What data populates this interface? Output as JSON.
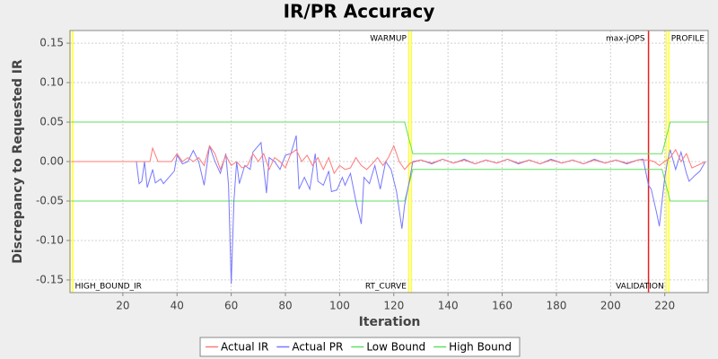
{
  "chart_data": {
    "type": "line",
    "title": "IR/PR Accuracy",
    "xlabel": "Iteration",
    "ylabel": "Discrepancy to Requested IR",
    "xlim": [
      0.5,
      236
    ],
    "ylim": [
      -0.166,
      0.166
    ],
    "xticks": [
      20,
      40,
      60,
      80,
      100,
      120,
      140,
      160,
      180,
      200,
      220
    ],
    "yticks": [
      -0.15,
      {
        "value": -0.1,
        "label": "-0.10"
      },
      -0.05,
      {
        "value": 0,
        "label": "0.00"
      },
      0.05,
      {
        "value": 0.1,
        "label": "0.10"
      },
      0.15
    ],
    "grid": true,
    "legend": "bottom",
    "series": [
      {
        "name": "Actual IR",
        "color": "#ff7878",
        "x": [
          1,
          24,
          30,
          31,
          33,
          38,
          40,
          42,
          44,
          46,
          48,
          50,
          52,
          54,
          56,
          58,
          60,
          62,
          64,
          66,
          68,
          70,
          72,
          74,
          76,
          78,
          80,
          82,
          84,
          86,
          88,
          90,
          92,
          94,
          96,
          98,
          100,
          102,
          104,
          106,
          108,
          110,
          112,
          114,
          116,
          118,
          120,
          122,
          124,
          126,
          128,
          130,
          134,
          138,
          142,
          146,
          150,
          154,
          158,
          162,
          166,
          170,
          174,
          178,
          182,
          186,
          190,
          194,
          198,
          202,
          206,
          210,
          214,
          216,
          218,
          220,
          222,
          224,
          226,
          228,
          230,
          232,
          235
        ],
        "values": [
          0,
          0,
          0,
          0.017,
          0,
          0,
          0.01,
          0,
          0.005,
          0,
          0.005,
          -0.005,
          0.02,
          0.01,
          -0.01,
          0.008,
          -0.005,
          0,
          -0.008,
          -0.005,
          0.01,
          0,
          0.01,
          -0.01,
          0.005,
          0,
          -0.008,
          0.01,
          0.015,
          0,
          0.008,
          -0.005,
          0.005,
          -0.01,
          0.005,
          -0.015,
          -0.005,
          -0.01,
          -0.008,
          0.005,
          -0.005,
          -0.01,
          -0.003,
          0.005,
          -0.005,
          0.005,
          0.02,
          0,
          -0.01,
          -0.002,
          0,
          0.002,
          -0.002,
          0.003,
          -0.002,
          0.002,
          -0.003,
          0.002,
          -0.002,
          0.003,
          -0.002,
          0.002,
          -0.003,
          0.002,
          -0.002,
          0.002,
          -0.003,
          0.002,
          -0.002,
          0.002,
          -0.002,
          0.002,
          0.002,
          0,
          -0.005,
          0,
          0.005,
          0.015,
          0,
          0.01,
          -0.008,
          -0.005,
          0
        ]
      },
      {
        "name": "Actual PR",
        "color": "#7878ff",
        "x": [
          1,
          25,
          26,
          27,
          28,
          29,
          31,
          32,
          34,
          35,
          37,
          39,
          40,
          42,
          44,
          46,
          48,
          50,
          52,
          54,
          56,
          58,
          59,
          60,
          61,
          62,
          63,
          65,
          67,
          68,
          70,
          71,
          73,
          74,
          76,
          78,
          80,
          82,
          84,
          85,
          87,
          89,
          91,
          92,
          94,
          96,
          97,
          99,
          101,
          102,
          104,
          106,
          108,
          109,
          111,
          113,
          115,
          117,
          119,
          121,
          123,
          124,
          126,
          127,
          130,
          134,
          138,
          142,
          146,
          150,
          154,
          158,
          162,
          166,
          170,
          174,
          178,
          182,
          186,
          190,
          194,
          198,
          202,
          206,
          210,
          212,
          214,
          215,
          217,
          218,
          219,
          220,
          221,
          222,
          224,
          226,
          228,
          229,
          231,
          233,
          235
        ],
        "values": [
          0,
          0,
          -0.028,
          -0.025,
          0,
          -0.033,
          -0.01,
          -0.027,
          -0.022,
          -0.028,
          -0.02,
          -0.012,
          0.008,
          -0.003,
          0,
          0.014,
          0,
          -0.03,
          0.02,
          0,
          -0.015,
          0.01,
          -0.03,
          -0.155,
          -0.05,
          0,
          -0.028,
          -0.005,
          -0.01,
          0.012,
          0.02,
          0.024,
          -0.04,
          0.005,
          0,
          -0.01,
          0.008,
          0.01,
          0.033,
          -0.035,
          -0.02,
          -0.035,
          0.01,
          -0.025,
          -0.03,
          -0.012,
          -0.038,
          -0.036,
          -0.02,
          -0.03,
          -0.015,
          -0.05,
          -0.079,
          -0.02,
          -0.028,
          -0.005,
          -0.035,
          0,
          -0.01,
          -0.038,
          -0.085,
          -0.055,
          -0.02,
          0,
          0.002,
          -0.003,
          0.003,
          -0.002,
          0.003,
          -0.003,
          0.002,
          -0.002,
          0.003,
          -0.003,
          0.002,
          -0.003,
          0.003,
          -0.002,
          0.002,
          -0.003,
          0.003,
          -0.002,
          0.002,
          -0.003,
          0.002,
          0.003,
          -0.03,
          -0.035,
          -0.065,
          -0.082,
          -0.05,
          -0.02,
          0,
          0.015,
          -0.01,
          0.012,
          -0.015,
          -0.025,
          -0.018,
          -0.012,
          0
        ]
      },
      {
        "name": "Low Bound",
        "color": "#5fe05f",
        "x": [
          1,
          124,
          127,
          219,
          222,
          236
        ],
        "values": [
          -0.05,
          -0.05,
          -0.01,
          -0.01,
          -0.05,
          -0.05
        ]
      },
      {
        "name": "High Bound",
        "color": "#5fe05f",
        "x": [
          1,
          124,
          127,
          219,
          222,
          236
        ],
        "values": [
          0.05,
          0.05,
          0.01,
          0.01,
          0.05,
          0.05
        ]
      }
    ],
    "markers": [
      {
        "x": 1,
        "color": "#ffff33",
        "bottom_label": "HIGH_BOUND_IR"
      },
      {
        "x": 126,
        "color": "#ffff33",
        "top_label": "WARMUP",
        "bottom_label": "RT_CURVE"
      },
      {
        "x": 214,
        "color": "#e82020",
        "top_label": "max-jOPS"
      },
      {
        "x": 221,
        "color": "#ffff33",
        "top_label": "PROFILE",
        "bottom_label": "VALIDATION"
      }
    ]
  }
}
